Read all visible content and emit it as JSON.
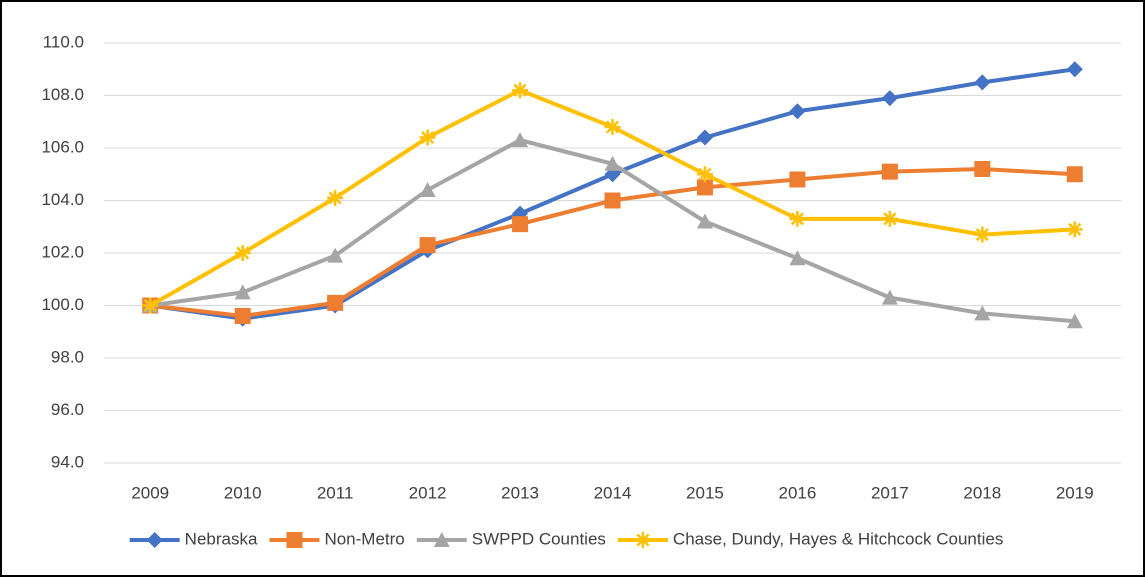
{
  "chart_data": {
    "type": "line",
    "categories": [
      "2009",
      "2010",
      "2011",
      "2012",
      "2013",
      "2014",
      "2015",
      "2016",
      "2017",
      "2018",
      "2019"
    ],
    "series": [
      {
        "name": "Nebraska",
        "color": "#4472c4",
        "marker": "diamond",
        "values": [
          100,
          99.5,
          100.0,
          102.1,
          103.5,
          105.0,
          106.4,
          107.4,
          107.9,
          108.5,
          109.0
        ]
      },
      {
        "name": "Non-Metro",
        "color": "#ed7d31",
        "marker": "square",
        "values": [
          100,
          99.6,
          100.1,
          102.3,
          103.1,
          104.0,
          104.5,
          104.8,
          105.1,
          105.2,
          105.0
        ]
      },
      {
        "name": "SWPPD Counties",
        "color": "#a5a5a5",
        "marker": "triangle",
        "values": [
          100,
          100.5,
          101.9,
          104.4,
          106.3,
          105.4,
          103.2,
          101.8,
          100.3,
          99.7,
          99.4
        ]
      },
      {
        "name": "Chase, Dundy, Hayes & Hitchcock Counties",
        "color": "#ffc000",
        "marker": "star",
        "values": [
          100,
          102.0,
          104.1,
          106.4,
          108.2,
          106.8,
          105.0,
          103.3,
          103.3,
          102.7,
          102.9
        ]
      }
    ],
    "ylim": [
      94,
      110
    ],
    "yticks": [
      {
        "value": 94,
        "label": "94.0"
      },
      {
        "value": 96,
        "label": "96.0"
      },
      {
        "value": 98,
        "label": "98.0"
      },
      {
        "value": 100,
        "label": "100.0"
      },
      {
        "value": 102,
        "label": "102.0"
      },
      {
        "value": 104,
        "label": "104.0"
      },
      {
        "value": 106,
        "label": "106.0"
      },
      {
        "value": 108,
        "label": "108.0"
      },
      {
        "value": 110,
        "label": "110.0"
      }
    ],
    "grid": true,
    "legend": "bottom"
  }
}
